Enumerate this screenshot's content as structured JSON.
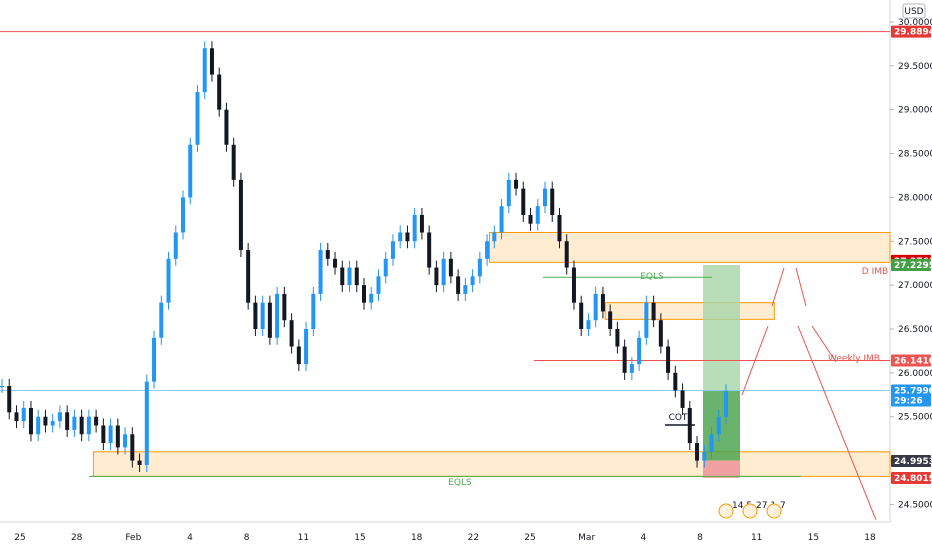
{
  "currency": "USD",
  "chart_data": {
    "type": "candlestick",
    "ylim": [
      24.3,
      30.25
    ],
    "y_ticks": [
      "24.50000",
      "25.00000",
      "25.50000",
      "26.00000",
      "26.50000",
      "27.00000",
      "27.50000",
      "28.00000",
      "28.50000",
      "29.00000",
      "29.50000",
      "30.00000"
    ],
    "x_ticks": [
      "25",
      "28",
      "Feb",
      "4",
      "8",
      "11",
      "15",
      "18",
      "22",
      "25",
      "Mar",
      "4",
      "8",
      "11",
      "15",
      "18"
    ],
    "price_tags": [
      {
        "label": "29.88947",
        "value": 29.88947,
        "color": "#e53935"
      },
      {
        "label": "27.27612",
        "value": 27.27612,
        "color": "#d50000"
      },
      {
        "label": "27.22952",
        "value": 27.22952,
        "color": "#43a047"
      },
      {
        "label": "26.14100",
        "value": 26.141,
        "color": "#ef5350"
      },
      {
        "label": "25.79900",
        "value": 25.799,
        "color": "#2196f3",
        "sub": "29:26"
      },
      {
        "label": "24.99538",
        "value": 24.99538,
        "color": "#363a45"
      },
      {
        "label": "24.80195",
        "value": 24.80195,
        "color": "#e53935"
      }
    ],
    "horizontal_lines": [
      {
        "value": 29.88947,
        "color": "#ef5350",
        "from": 0,
        "to": 1
      },
      {
        "value": 26.141,
        "color": "#ef5350",
        "from": 0.6,
        "to": 1
      },
      {
        "value": 27.09,
        "color": "#4caf50",
        "from": 0.61,
        "to": 0.8
      },
      {
        "value": 24.82,
        "color": "#4caf50",
        "from": 0.1,
        "to": 0.9
      },
      {
        "value": 25.799,
        "color": "#90caf9",
        "from": 0,
        "to": 1
      }
    ],
    "zones": [
      {
        "y_top": 27.6,
        "y_bottom": 27.26,
        "x_from": 0.55,
        "x_to": 1
      },
      {
        "y_top": 26.8,
        "y_bottom": 26.61,
        "x_from": 0.68,
        "x_to": 0.87
      },
      {
        "y_top": 25.1,
        "y_bottom": 24.82,
        "x_from": 0.105,
        "x_to": 1
      }
    ],
    "position": {
      "entry": 25.0,
      "target": 27.22952,
      "stop": 24.80195,
      "current": 25.799
    },
    "annotations": [
      {
        "text": "EQLS",
        "color": "#4caf50"
      },
      {
        "text": "EQLS",
        "color": "#4caf50"
      },
      {
        "text": "D IMB",
        "color": "#ef5350"
      },
      {
        "text": "Weekly IMB",
        "color": "#ef5350"
      },
      {
        "text": "COT",
        "color": "#131722"
      }
    ],
    "events": [
      "14.5",
      "27.1",
      "7"
    ],
    "series": [
      {
        "values": [
          25.85,
          25.55,
          25.45,
          25.6,
          25.3,
          25.5,
          25.4,
          25.45,
          25.55,
          25.35,
          25.5,
          25.3,
          25.5,
          25.4,
          25.2,
          25.4,
          25.15,
          25.3,
          25.0,
          24.95,
          25.9,
          26.4,
          26.8,
          27.3,
          27.6,
          28.0,
          28.6,
          29.2,
          29.7,
          29.4,
          29.0,
          28.6,
          28.2,
          27.4,
          26.8,
          26.5,
          26.8,
          26.4,
          26.9,
          26.6,
          26.3,
          26.1,
          26.5,
          26.9,
          27.4,
          27.3,
          27.2,
          27.0,
          27.2,
          27.0,
          26.8,
          26.9,
          27.1,
          27.3,
          27.5,
          27.6,
          27.5,
          27.8,
          27.6,
          27.2,
          27.0,
          27.3,
          27.1,
          26.9,
          27.0,
          27.1,
          27.3,
          27.5,
          27.6,
          27.9,
          28.2,
          28.1,
          27.8,
          27.7,
          27.9,
          28.1,
          27.8,
          27.5,
          27.2,
          26.8,
          26.5,
          26.6,
          26.9,
          26.7,
          26.5,
          26.3,
          26.0,
          26.1,
          26.4,
          26.8,
          26.6,
          26.3,
          26.0,
          25.8,
          25.6,
          25.2,
          25.0,
          25.1,
          25.3,
          25.5,
          25.79
        ]
      }
    ]
  }
}
